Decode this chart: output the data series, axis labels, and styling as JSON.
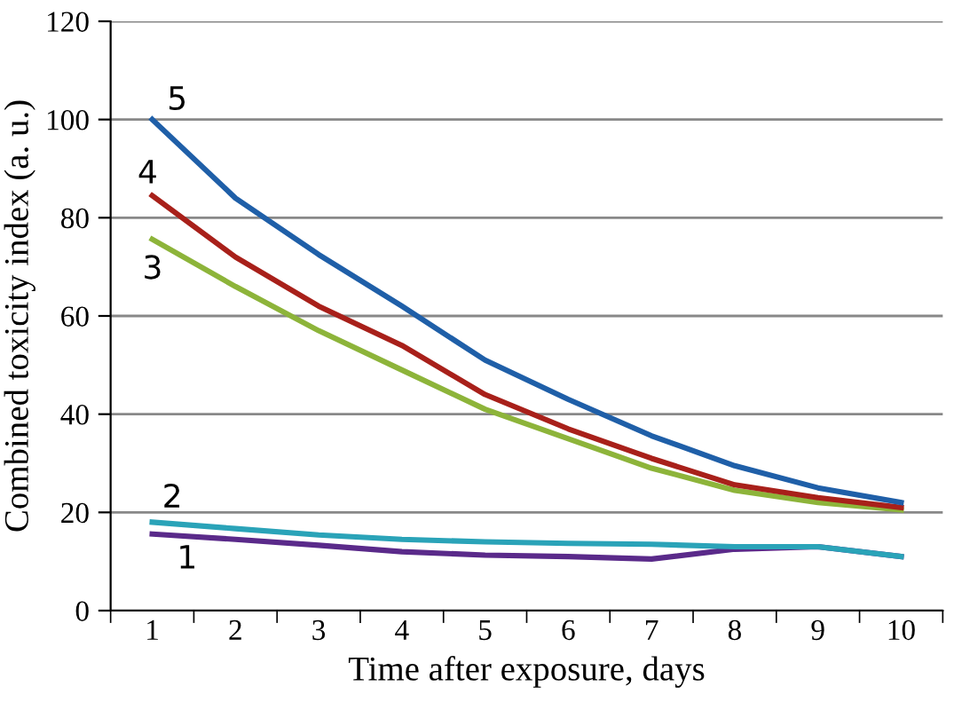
{
  "chart_data": {
    "type": "line",
    "xlabel": "Time after exposure, days",
    "ylabel": "Combined toxicity index (a. u.)",
    "categories": [
      "1",
      "2",
      "3",
      "4",
      "5",
      "6",
      "7",
      "8",
      "9",
      "10"
    ],
    "ylim": [
      0,
      120
    ],
    "yticks": [
      0,
      20,
      40,
      60,
      80,
      100,
      120
    ],
    "grid": "y",
    "legend": false,
    "marker": "none",
    "line_style": "solid",
    "series": [
      {
        "name": "1",
        "color": "#5a2a8a",
        "values": [
          15.6,
          14.5,
          13.3,
          12,
          11.3,
          11,
          10.5,
          12.5,
          13,
          11
        ]
      },
      {
        "name": "2",
        "color": "#2aa3b8",
        "values": [
          18,
          16.7,
          15.4,
          14.5,
          14,
          13.7,
          13.5,
          13,
          13,
          11
        ]
      },
      {
        "name": "3",
        "color": "#8db43a",
        "values": [
          75.6,
          66,
          57,
          49,
          41,
          35,
          29,
          24.5,
          22,
          20.5
        ]
      },
      {
        "name": "4",
        "color": "#a8201a",
        "values": [
          84.5,
          72,
          62,
          54,
          44,
          37,
          31,
          25.6,
          23,
          21
        ]
      },
      {
        "name": "5",
        "color": "#1f5fa8",
        "values": [
          100,
          84,
          72.5,
          62,
          51,
          43,
          35.6,
          29.5,
          25,
          22
        ]
      }
    ]
  }
}
